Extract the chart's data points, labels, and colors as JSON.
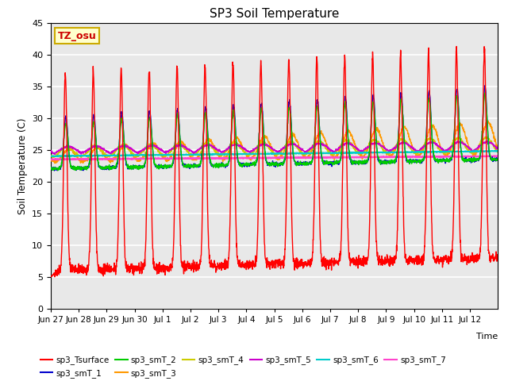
{
  "title": "SP3 Soil Temperature",
  "xlabel": "Time",
  "ylabel": "Soil Temperature (C)",
  "ylim": [
    0,
    45
  ],
  "annotation_text": "TZ_osu",
  "annotation_bbox_facecolor": "#ffffcc",
  "annotation_bbox_edgecolor": "#ccaa00",
  "background_color": "#e8e8e8",
  "grid_color": "#ffffff",
  "series_colors": {
    "sp3_Tsurface": "#ff0000",
    "sp3_smT_1": "#0000cc",
    "sp3_smT_2": "#00cc00",
    "sp3_smT_3": "#ff9900",
    "sp3_smT_4": "#cccc00",
    "sp3_smT_5": "#cc00cc",
    "sp3_smT_6": "#00cccc",
    "sp3_smT_7": "#ff44cc"
  },
  "x_tick_labels": [
    "Jun 27",
    "Jun 28",
    "Jun 29",
    "Jun 30",
    "Jul 1",
    "Jul 2",
    "Jul 3",
    "Jul 4",
    "Jul 5",
    "Jul 6",
    "Jul 7",
    "Jul 8",
    "Jul 9",
    "Jul 10",
    "Jul 11",
    "Jul 12"
  ],
  "n_days": 16,
  "points_per_day": 144
}
